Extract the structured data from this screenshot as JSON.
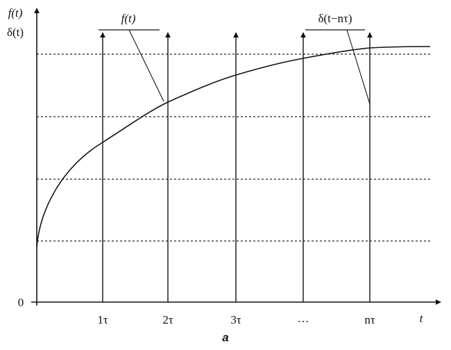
{
  "axes": {
    "y_label_top": "f(t)",
    "y_label_bottom": "δ(t)",
    "origin": "0",
    "x_label": "t"
  },
  "ticks": [
    "1τ",
    "2τ",
    "3τ",
    "…",
    "nτ"
  ],
  "callouts": {
    "curve": "f(t)",
    "impulse": "δ(t−nτ)"
  },
  "caption": "a"
}
